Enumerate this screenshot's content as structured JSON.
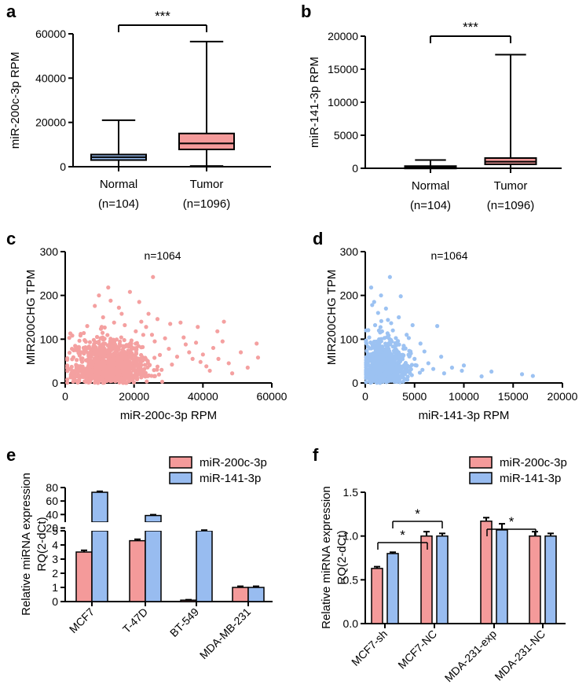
{
  "figure": {
    "panel_letters": [
      "a",
      "b",
      "c",
      "d",
      "e",
      "f"
    ],
    "colors": {
      "red": "#F49A9A",
      "blue": "#98BCF0",
      "scatter_red": "#F4A0A0",
      "scatter_blue": "#9CC2F2",
      "line": "#000000"
    }
  },
  "chart_data": [
    {
      "panel": "a",
      "type": "box",
      "ylabel": "miR-200c-3p RPM",
      "ylim": [
        0,
        60000
      ],
      "yticks": [
        0,
        20000,
        40000,
        60000
      ],
      "categories": [
        "Normal",
        "Tumor"
      ],
      "category_sublabels": [
        "(n=104)",
        "(n=1096)"
      ],
      "boxes": [
        {
          "name": "Normal",
          "min": 0,
          "q1": 3000,
          "median": 4300,
          "q3": 5500,
          "max": 21000,
          "color": "#98BCF0"
        },
        {
          "name": "Tumor",
          "min": 300,
          "q1": 7800,
          "median": 10500,
          "q3": 15000,
          "max": 56500,
          "color": "#F49A9A"
        }
      ],
      "significance": "***"
    },
    {
      "panel": "b",
      "type": "box",
      "ylabel": "miR-141-3p RPM",
      "ylim": [
        0,
        20000
      ],
      "yticks": [
        0,
        5000,
        10000,
        15000,
        20000
      ],
      "categories": [
        "Normal",
        "Tumor"
      ],
      "category_sublabels": [
        "(n=104)",
        "(n=1096)"
      ],
      "boxes": [
        {
          "name": "Normal",
          "min": 0,
          "q1": 80,
          "median": 180,
          "q3": 330,
          "max": 1250,
          "color": "#98BCF0"
        },
        {
          "name": "Tumor",
          "min": 0,
          "q1": 600,
          "median": 1000,
          "q3": 1550,
          "max": 17200,
          "color": "#F49A9A"
        }
      ],
      "significance": "***"
    },
    {
      "panel": "c",
      "type": "scatter",
      "title": "n=1064",
      "xlabel": "miR-200c-3p RPM",
      "ylabel": "MIR200CHG TPM",
      "xlim": [
        0,
        60000
      ],
      "ylim": [
        0,
        300
      ],
      "xticks": [
        0,
        20000,
        40000,
        60000
      ],
      "yticks": [
        0,
        100,
        200,
        300
      ],
      "color": "#F4A0A0",
      "points": [
        [
          12500,
          218
        ],
        [
          25500,
          242
        ],
        [
          18800,
          208
        ],
        [
          21500,
          185
        ],
        [
          9800,
          200
        ],
        [
          13200,
          188
        ],
        [
          15600,
          172
        ],
        [
          8600,
          176
        ],
        [
          24200,
          158
        ],
        [
          26800,
          146
        ],
        [
          30500,
          135
        ],
        [
          33500,
          138
        ],
        [
          38500,
          128
        ],
        [
          44200,
          118
        ],
        [
          46100,
          140
        ],
        [
          55600,
          90
        ],
        [
          51000,
          70
        ],
        [
          56000,
          58
        ],
        [
          47500,
          45
        ],
        [
          43000,
          80
        ],
        [
          41000,
          38
        ],
        [
          35000,
          88
        ],
        [
          29000,
          102
        ],
        [
          32500,
          60
        ],
        [
          37000,
          55
        ],
        [
          40000,
          65
        ],
        [
          23500,
          128
        ],
        [
          20500,
          118
        ],
        [
          17300,
          132
        ],
        [
          11000,
          150
        ],
        [
          6400,
          130
        ],
        [
          4500,
          112
        ],
        [
          1200,
          103
        ],
        [
          2800,
          20
        ],
        [
          14200,
          138
        ],
        [
          19200,
          90
        ],
        [
          22500,
          82
        ],
        [
          27500,
          64
        ],
        [
          31000,
          42
        ],
        [
          28000,
          30
        ],
        [
          24000,
          50
        ],
        [
          26000,
          95
        ],
        [
          48500,
          22
        ],
        [
          53000,
          35
        ],
        [
          44500,
          55
        ],
        [
          38000,
          92
        ],
        [
          36000,
          70
        ],
        [
          42000,
          28
        ],
        [
          16400,
          158
        ],
        [
          10600,
          128
        ],
        [
          25200,
          110
        ],
        [
          30100,
          78
        ],
        [
          34400,
          104
        ],
        [
          39300,
          48
        ],
        [
          45700,
          95
        ],
        [
          22100,
          140
        ]
      ]
    },
    {
      "panel": "d",
      "type": "scatter",
      "title": "n=1064",
      "xlabel": "miR-141-3p RPM",
      "ylabel": "MIR200CHG TPM",
      "xlim": [
        0,
        20000
      ],
      "ylim": [
        0,
        300
      ],
      "xticks": [
        0,
        5000,
        10000,
        15000,
        20000
      ],
      "yticks": [
        0,
        100,
        200,
        300
      ],
      "color": "#9CC2F2",
      "points": [
        [
          600,
          218
        ],
        [
          2500,
          242
        ],
        [
          1600,
          200
        ],
        [
          900,
          185
        ],
        [
          3600,
          198
        ],
        [
          2100,
          170
        ],
        [
          1300,
          160
        ],
        [
          4800,
          132
        ],
        [
          7300,
          130
        ],
        [
          5600,
          90
        ],
        [
          6000,
          72
        ],
        [
          7700,
          60
        ],
        [
          10000,
          40
        ],
        [
          11800,
          15
        ],
        [
          12800,
          26
        ],
        [
          15900,
          20
        ],
        [
          17000,
          16
        ],
        [
          9800,
          28
        ],
        [
          8800,
          35
        ],
        [
          6400,
          45
        ],
        [
          3400,
          150
        ],
        [
          2800,
          120
        ],
        [
          4200,
          110
        ],
        [
          3900,
          85
        ],
        [
          5000,
          55
        ],
        [
          4500,
          62
        ],
        [
          1000,
          132
        ],
        [
          400,
          104
        ],
        [
          2300,
          144
        ],
        [
          5200,
          40
        ],
        [
          3100,
          90
        ],
        [
          700,
          178
        ],
        [
          6900,
          32
        ],
        [
          8000,
          22
        ],
        [
          5800,
          30
        ],
        [
          1700,
          118
        ]
      ]
    },
    {
      "panel": "e",
      "type": "bar",
      "ylabel": "Relative miRNA expression",
      "ylabel2": "RQ(2-dCt)",
      "categories": [
        "MCF7",
        "T-47D",
        "BT-549",
        "MDA-MB-231"
      ],
      "series": [
        {
          "name": "miR-200c-3p",
          "values": [
            3.5,
            4.3,
            0.1,
            1.0
          ],
          "errors": [
            0.12,
            0.1,
            0.03,
            0.08
          ],
          "color": "#F49A9A"
        },
        {
          "name": "miR-141-3p",
          "values": [
            73,
            38.5,
            16,
            1.0
          ],
          "errors": [
            1.4,
            1.2,
            0.8,
            0.08
          ],
          "color": "#98BCF0"
        }
      ],
      "axis_break": true,
      "lower_ylim": [
        0,
        5
      ],
      "upper_ylim": [
        10,
        80
      ],
      "yticks_lower": [
        0,
        1,
        2,
        3,
        4,
        5
      ],
      "yticks_upper": [
        20,
        40,
        60,
        80
      ]
    },
    {
      "panel": "f",
      "type": "bar",
      "ylabel": "Relative miRNA expression",
      "ylabel2": "RQ(2-dCt)",
      "categories": [
        "MCF7-sh",
        "MCF7-NC",
        "MDA-231-exp",
        "MDA-231-NC"
      ],
      "series": [
        {
          "name": "miR-200c-3p",
          "values": [
            0.63,
            1.0,
            1.17,
            1.0
          ],
          "errors": [
            0.02,
            0.05,
            0.04,
            0.05
          ],
          "color": "#F49A9A"
        },
        {
          "name": "miR-141-3p",
          "values": [
            0.8,
            1.0,
            1.07,
            1.0
          ],
          "errors": [
            0.015,
            0.03,
            0.07,
            0.03
          ],
          "color": "#98BCF0"
        }
      ],
      "ylim": [
        0,
        1.5
      ],
      "yticks": [
        0,
        0.5,
        1.0,
        1.5
      ],
      "ytick_labels": [
        "0.0",
        "0.5",
        "1.0",
        "1.5"
      ],
      "significance": [
        {
          "groups": [
            0,
            1
          ],
          "series": "miR-200c-3p",
          "label": "*"
        },
        {
          "groups": [
            0,
            1
          ],
          "series": "miR-141-3p",
          "label": "*"
        },
        {
          "groups": [
            2,
            3
          ],
          "series": "miR-200c-3p",
          "label": "*"
        }
      ]
    }
  ]
}
